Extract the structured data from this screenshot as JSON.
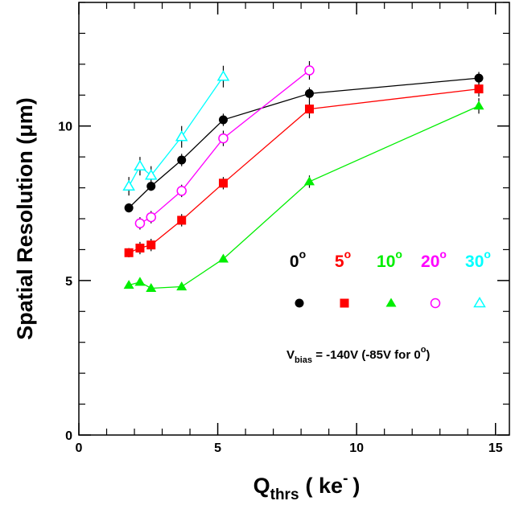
{
  "chart_data": {
    "type": "line",
    "xlabel": {
      "main": "Q",
      "sub": "thrs",
      "rest": "( ke",
      "sup": "-",
      "close": ")"
    },
    "ylabel": "Spatial Resolution (μm)",
    "xlim": [
      0,
      15.5
    ],
    "ylim": [
      0,
      14
    ],
    "xticks": [
      0,
      5,
      10,
      15
    ],
    "yticks": [
      0,
      5,
      10
    ],
    "grid": false,
    "legend_position": "center-right",
    "series": [
      {
        "name": "0",
        "color": "#000000",
        "marker": "circle-filled",
        "x": [
          1.8,
          2.6,
          3.7,
          5.2,
          8.3,
          14.4
        ],
        "y": [
          7.35,
          8.05,
          8.9,
          10.2,
          11.05,
          11.55
        ],
        "err": [
          0.15,
          0.15,
          0.2,
          0.2,
          0.2,
          0.2
        ]
      },
      {
        "name": "5",
        "color": "#ff0000",
        "marker": "square-filled",
        "x": [
          1.8,
          2.2,
          2.6,
          3.7,
          5.2,
          8.3,
          14.4
        ],
        "y": [
          5.9,
          6.05,
          6.15,
          6.95,
          8.15,
          10.55,
          11.2
        ],
        "err": [
          0.15,
          0.2,
          0.2,
          0.2,
          0.2,
          0.3,
          0.25
        ]
      },
      {
        "name": "10",
        "color": "#00ee00",
        "marker": "triangle-filled",
        "x": [
          1.8,
          2.2,
          2.6,
          3.7,
          5.2,
          8.3,
          14.4
        ],
        "y": [
          4.85,
          4.95,
          4.75,
          4.8,
          5.7,
          8.2,
          10.65
        ],
        "err": [
          0.1,
          0.1,
          0.1,
          0.1,
          0.1,
          0.2,
          0.25
        ]
      },
      {
        "name": "20",
        "color": "#ff00ff",
        "marker": "circle-open",
        "x": [
          2.2,
          2.6,
          3.7,
          5.2,
          8.3
        ],
        "y": [
          6.85,
          7.05,
          7.9,
          9.6,
          11.8
        ],
        "err": [
          0.2,
          0.2,
          0.2,
          0.25,
          0.3
        ]
      },
      {
        "name": "30",
        "color": "#00ffff",
        "marker": "triangle-open",
        "x": [
          1.8,
          2.2,
          2.6,
          3.7,
          5.2
        ],
        "y": [
          8.05,
          8.7,
          8.4,
          9.65,
          11.6
        ],
        "err": [
          0.3,
          0.3,
          0.3,
          0.35,
          0.35
        ]
      }
    ],
    "legend": {
      "degree_sign": "o",
      "labels": [
        "0",
        "5",
        "10",
        "20",
        "30"
      ],
      "colors": [
        "#000000",
        "#ff0000",
        "#00ee00",
        "#ff00ff",
        "#00ffff"
      ]
    },
    "annotation": {
      "v": "V",
      "sub": "bias",
      "rest": " = -140V (-85V for 0",
      "sup": "o",
      "close": ")"
    }
  }
}
